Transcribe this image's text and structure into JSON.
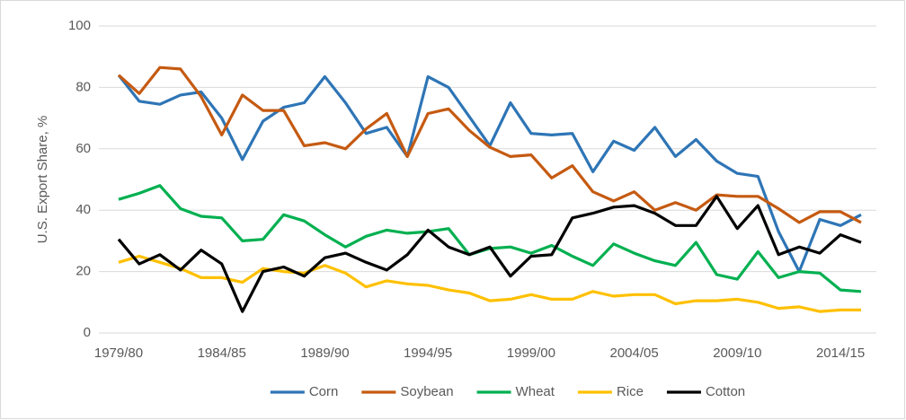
{
  "chart_data": {
    "type": "line",
    "y_label": "U.S. Export Share, %",
    "categories": [
      "1979/80",
      null,
      null,
      null,
      null,
      "1984/85",
      null,
      null,
      null,
      null,
      "1989/90",
      null,
      null,
      null,
      null,
      "1994/95",
      null,
      null,
      null,
      null,
      "1999/00",
      null,
      null,
      null,
      null,
      "2004/05",
      null,
      null,
      null,
      null,
      "2009/10",
      null,
      null,
      null,
      null,
      "2014/15",
      null
    ],
    "series": [
      {
        "name": "Corn",
        "color": "#2e75b6",
        "values": [
          84,
          75.5,
          74.5,
          77.5,
          78.5,
          70,
          56.5,
          69,
          73.5,
          75,
          83.5,
          75,
          65,
          67,
          57.5,
          83.5,
          80,
          70.5,
          61,
          75,
          65,
          64.5,
          65,
          52.5,
          62.5,
          59.5,
          67,
          57.5,
          63,
          56,
          52,
          51,
          33,
          20,
          37,
          35,
          38.5
        ]
      },
      {
        "name": "Soybean",
        "color": "#c55a11",
        "values": [
          84,
          78,
          86.5,
          86,
          77,
          64.5,
          77.5,
          72.5,
          72.5,
          61,
          62,
          60,
          66.5,
          71.5,
          57.5,
          71.5,
          73,
          66,
          60.5,
          57.5,
          58,
          50.5,
          54.5,
          46,
          43,
          46,
          40,
          42.5,
          40,
          45,
          44.5,
          44.5,
          40.5,
          36,
          39.5,
          39.5,
          36
        ]
      },
      {
        "name": "Wheat",
        "color": "#00b050",
        "values": [
          43.5,
          45.5,
          48,
          40.5,
          38,
          37.5,
          30,
          30.5,
          38.5,
          36.5,
          32,
          28,
          31.5,
          33.5,
          32.5,
          33,
          34,
          25.5,
          27.5,
          28,
          26,
          28.5,
          25,
          22,
          29,
          26,
          23.5,
          22,
          29.5,
          19,
          17.5,
          26.5,
          18,
          20,
          19.5,
          14,
          13.5
        ]
      },
      {
        "name": "Rice",
        "color": "#ffc000",
        "values": [
          23,
          25,
          23,
          21,
          18,
          18,
          16.5,
          21,
          20,
          19.5,
          22,
          19.5,
          15,
          17,
          16,
          15.5,
          14,
          13,
          10.5,
          11,
          12.5,
          11,
          11,
          13.5,
          12,
          12.5,
          12.5,
          9.5,
          10.5,
          10.5,
          11,
          10,
          8,
          8.5,
          7,
          7.5,
          7.5
        ]
      },
      {
        "name": "Cotton",
        "color": "#000000",
        "values": [
          30.5,
          22.5,
          25.5,
          20.5,
          27,
          22.5,
          7,
          20,
          21.5,
          18.5,
          24.5,
          26,
          23,
          20.5,
          25.5,
          33.5,
          28,
          25.5,
          28,
          18.5,
          25,
          25.5,
          37.5,
          39,
          41,
          41.5,
          39,
          35,
          35,
          44.5,
          34,
          41.5,
          25.5,
          28,
          26,
          32,
          29.5
        ]
      }
    ],
    "ylim": [
      0,
      100
    ],
    "yticks": [
      0,
      20,
      40,
      60,
      80,
      100
    ],
    "grid": true,
    "legend": "bottom"
  }
}
